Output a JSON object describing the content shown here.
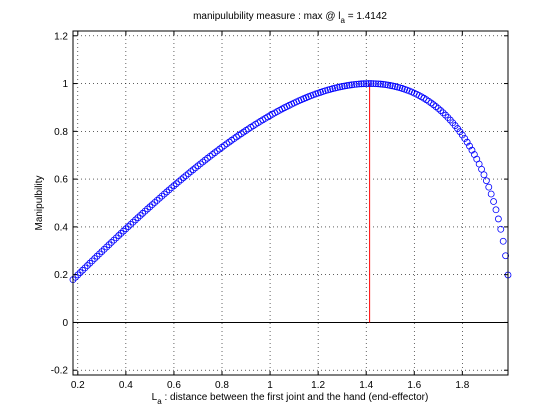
{
  "chart_data": {
    "type": "scatter",
    "title": {
      "prefix": "manipulubility measure : max @ l",
      "subscript": "a",
      "suffix": " = 1.4142"
    },
    "xlabel": {
      "prefix": "L",
      "subscript": "a",
      "suffix": " : distance between the first joint and the hand (end-effector)"
    },
    "ylabel": "Manipulbility",
    "xlim": [
      0.18,
      1.99
    ],
    "ylim": [
      -0.22,
      1.22
    ],
    "xticks": [
      {
        "v": 0.2,
        "label": "0.2"
      },
      {
        "v": 0.4,
        "label": "0.4"
      },
      {
        "v": 0.6,
        "label": "0.6"
      },
      {
        "v": 0.8,
        "label": "0.8"
      },
      {
        "v": 1.0,
        "label": "1"
      },
      {
        "v": 1.2,
        "label": "1.2"
      },
      {
        "v": 1.4,
        "label": "1.4"
      },
      {
        "v": 1.6,
        "label": "1.6"
      },
      {
        "v": 1.8,
        "label": "1.8"
      }
    ],
    "yticks": [
      {
        "v": -0.2,
        "label": "-0.2"
      },
      {
        "v": 0,
        "label": "0"
      },
      {
        "v": 0.2,
        "label": "0.2"
      },
      {
        "v": 0.4,
        "label": "0.4"
      },
      {
        "v": 0.6,
        "label": "0.6"
      },
      {
        "v": 0.8,
        "label": "0.8"
      },
      {
        "v": 1.0,
        "label": "1"
      },
      {
        "v": 1.2,
        "label": "1.2"
      }
    ],
    "grid": true,
    "series": [
      {
        "marker": "circle-open",
        "color": "#0000ff",
        "function": "y = x * sqrt(4 - x^2) / 2",
        "x_start": 0.18,
        "x_end": 1.99,
        "x_step": 0.01
      }
    ],
    "max_line": {
      "x": 1.4142,
      "y_from": 0,
      "y_to": 1.0,
      "color": "#ff0000"
    },
    "zero_line": {
      "y": 0,
      "color": "#000000"
    }
  }
}
